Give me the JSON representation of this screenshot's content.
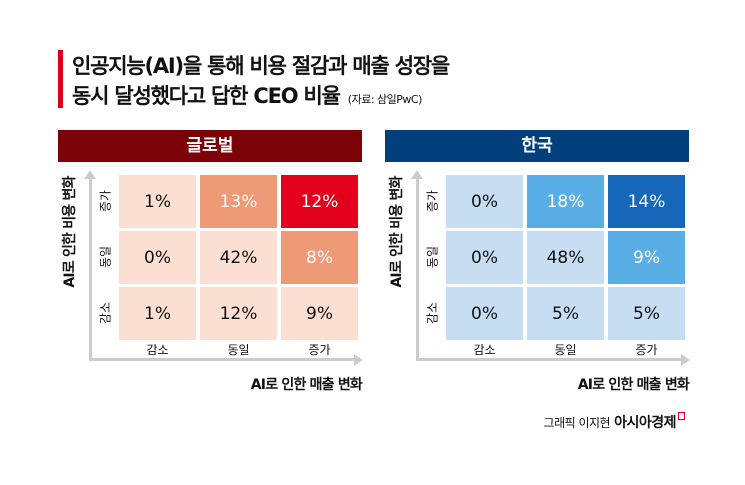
{
  "title": {
    "line1": "인공지능(AI)을 통해 비용 절감과 매출 성장을",
    "line2": "동시 달성했다고 답한 CEO 비율",
    "source": "(자료: 삼일PwC)"
  },
  "chart_data": [
    {
      "type": "heatmap",
      "title": "글로벌",
      "xlabel": "AI로 인한 매출 변화",
      "ylabel": "AI로 인한 비용 변화",
      "x_categories": [
        "감소",
        "동일",
        "증가"
      ],
      "y_categories": [
        "증가",
        "동일",
        "감소"
      ],
      "values": [
        [
          1,
          13,
          12
        ],
        [
          0,
          42,
          8
        ],
        [
          1,
          12,
          9
        ]
      ],
      "unit": "%",
      "colors": {
        "header": "#7b0206",
        "light": "#fbdfd2",
        "mid": "#ee9a76",
        "high": "#e2001c"
      },
      "cell_colors": [
        [
          "light",
          "mid",
          "high"
        ],
        [
          "light",
          "light",
          "mid"
        ],
        [
          "light",
          "light",
          "light"
        ]
      ]
    },
    {
      "type": "heatmap",
      "title": "한국",
      "xlabel": "AI로 인한 매출 변화",
      "ylabel": "AI로 인한 비용 변화",
      "x_categories": [
        "감소",
        "동일",
        "증가"
      ],
      "y_categories": [
        "증가",
        "동일",
        "감소"
      ],
      "values": [
        [
          0,
          18,
          14
        ],
        [
          0,
          48,
          9
        ],
        [
          0,
          5,
          5
        ]
      ],
      "unit": "%",
      "colors": {
        "header": "#043f7d",
        "light": "#c7ddf2",
        "mid": "#5aaee6",
        "high": "#1666b9"
      },
      "cell_colors": [
        [
          "light",
          "mid",
          "high"
        ],
        [
          "light",
          "light",
          "mid"
        ],
        [
          "light",
          "light",
          "light"
        ]
      ]
    }
  ],
  "credit": {
    "text": "그래픽 이지현",
    "brand": "아시아경제"
  }
}
